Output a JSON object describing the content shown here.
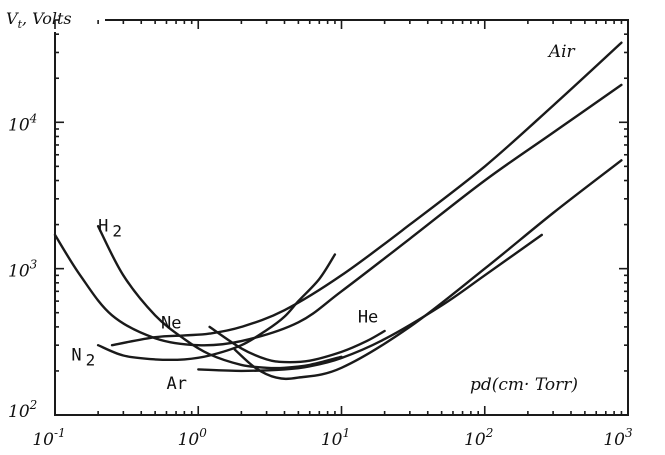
{
  "chart_data": {
    "type": "line",
    "title": "",
    "ylabel_prefix": "V",
    "ylabel_sub": "t",
    "ylabel_suffix": ", Volts",
    "xlabel": "pd(cm· Torr)",
    "xscale": "log",
    "yscale": "log",
    "xlim": [
      0.1,
      1000
    ],
    "ylim": [
      100,
      50000
    ],
    "grid": false,
    "x_ticks": [
      {
        "value": 0.1,
        "base": "10",
        "exp": "-1"
      },
      {
        "value": 1,
        "base": "10",
        "exp": "0"
      },
      {
        "value": 10,
        "base": "10",
        "exp": "1"
      },
      {
        "value": 100,
        "base": "10",
        "exp": "2"
      },
      {
        "value": 1000,
        "base": "10",
        "exp": "3"
      }
    ],
    "y_ticks": [
      {
        "value": 100,
        "base": "10",
        "exp": "2"
      },
      {
        "value": 1000,
        "base": "10",
        "exp": "3"
      },
      {
        "value": 10000,
        "base": "10",
        "exp": "4"
      }
    ],
    "series": [
      {
        "name": "Air",
        "label_text": "Air",
        "label_sub": "",
        "label_anchor": {
          "x": 280,
          "y": 28000
        },
        "x": [
          0.25,
          0.5,
          0.8,
          1.2,
          2,
          4,
          10,
          30,
          100,
          300,
          900
        ],
        "y": [
          300,
          340,
          350,
          360,
          400,
          520,
          900,
          2000,
          5000,
          13000,
          35000
        ]
      },
      {
        "name": "H2",
        "label_text": "H",
        "label_sub": "2",
        "label_anchor": {
          "x": 0.2,
          "y": 1800
        },
        "x": [
          0.2,
          0.3,
          0.5,
          0.8,
          1.2,
          2,
          3,
          4,
          6,
          10
        ],
        "y": [
          1950,
          900,
          480,
          330,
          260,
          220,
          210,
          210,
          220,
          250
        ]
      },
      {
        "name": "N2",
        "label_text": "N",
        "label_sub": "2",
        "label_anchor": {
          "x": 0.13,
          "y": 235
        },
        "x": [
          0.2,
          0.3,
          0.5,
          0.8,
          1.2,
          2,
          3,
          4,
          5,
          7,
          9
        ],
        "y": [
          300,
          255,
          240,
          240,
          255,
          300,
          380,
          470,
          600,
          850,
          1250
        ]
      },
      {
        "name": "Ne",
        "label_text": "Ne",
        "label_sub": "",
        "label_anchor": {
          "x": 0.55,
          "y": 390
        },
        "x": [
          0.1,
          0.15,
          0.25,
          0.5,
          1,
          2,
          5,
          10,
          30,
          100,
          300,
          900
        ],
        "y": [
          1700,
          900,
          480,
          335,
          300,
          320,
          430,
          700,
          1600,
          4000,
          8500,
          18000
        ]
      },
      {
        "name": "He",
        "label_text": "He",
        "label_sub": "",
        "label_anchor": {
          "x": 13,
          "y": 430
        },
        "x": [
          1.2,
          2,
          3,
          4,
          6,
          10,
          15,
          20
        ],
        "y": [
          400,
          285,
          240,
          230,
          235,
          270,
          320,
          375
        ]
      },
      {
        "name": "Ar",
        "label_text": "Ar",
        "label_sub": "",
        "label_anchor": {
          "x": 0.6,
          "y": 150
        },
        "x": [
          1,
          2,
          4,
          6,
          10,
          20,
          50,
          100,
          250
        ],
        "y": [
          205,
          200,
          205,
          215,
          245,
          330,
          560,
          900,
          1700
        ]
      },
      {
        "name": "",
        "label_text": "",
        "label_sub": "",
        "label_anchor": null,
        "x": [
          1.8,
          2.5,
          3.5,
          5,
          10,
          30,
          100,
          300,
          900
        ],
        "y": [
          280,
          210,
          180,
          180,
          210,
          400,
          1000,
          2400,
          5500
        ]
      }
    ]
  }
}
